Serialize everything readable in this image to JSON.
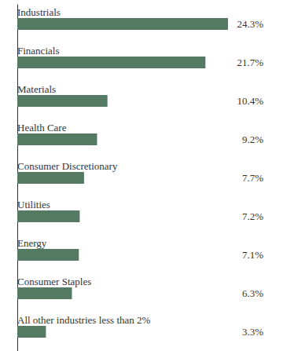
{
  "chart_data": {
    "type": "bar",
    "orientation": "horizontal",
    "categories": [
      "Industrials",
      "Financials",
      "Materials",
      "Health Care",
      "Consumer Discretionary",
      "Utilities",
      "Energy",
      "Consumer Staples",
      "All other industries less than 2%"
    ],
    "values": [
      24.3,
      21.7,
      10.4,
      9.2,
      7.7,
      7.2,
      7.1,
      6.3,
      3.3
    ],
    "value_labels": [
      "24.3%",
      "21.7%",
      "10.4%",
      "9.2%",
      "7.7%",
      "7.2%",
      "7.1%",
      "6.3%",
      "3.3%"
    ],
    "color": "#557a64",
    "xlim": [
      0,
      24.3
    ],
    "data_labels": true,
    "tick_labels": false,
    "grid": false
  }
}
